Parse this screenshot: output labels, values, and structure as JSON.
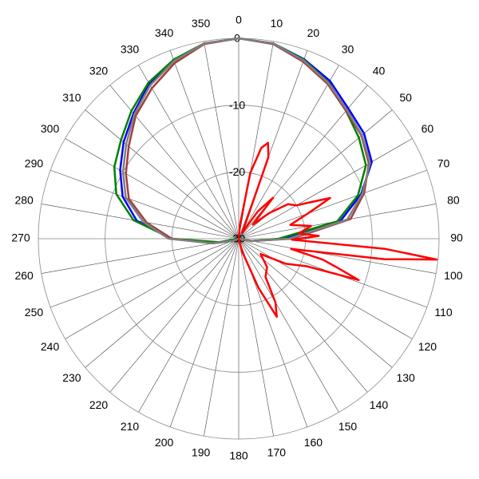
{
  "chart_data": {
    "type": "polar",
    "rlim": [
      -30,
      0
    ],
    "rticks": [
      -30,
      -20,
      -10,
      0
    ],
    "thetalim": [
      0,
      360
    ],
    "thetaticks": [
      0,
      10,
      20,
      30,
      40,
      50,
      60,
      70,
      80,
      90,
      100,
      110,
      120,
      130,
      140,
      150,
      160,
      170,
      180,
      190,
      200,
      210,
      220,
      230,
      240,
      250,
      260,
      270,
      280,
      290,
      300,
      310,
      320,
      330,
      340,
      350
    ],
    "grid": true,
    "series": [
      {
        "color": "#0000ff",
        "theta": [
          0,
          10,
          20,
          30,
          40,
          50,
          60,
          70,
          80,
          90,
          100,
          110,
          120,
          130,
          140,
          150,
          160,
          170,
          180,
          190,
          200,
          210,
          220,
          230,
          240,
          250,
          260,
          270,
          280,
          290,
          300,
          310,
          320,
          330,
          340,
          350,
          360
        ],
        "values": [
          0,
          -0.3,
          -1.4,
          -2.7,
          -4.5,
          -5.5,
          -7,
          -10.5,
          -14.5,
          -23,
          -28,
          -30,
          -30,
          -30,
          -30,
          -30,
          -30,
          -30,
          -30,
          -30,
          -30,
          -30,
          -30,
          -30,
          -30,
          -29,
          -26,
          -20,
          -14.5,
          -11.5,
          -9.5,
          -7.5,
          -5.5,
          -3.2,
          -1.5,
          -0.3,
          0
        ]
      },
      {
        "color": "#008000",
        "theta": [
          0,
          10,
          20,
          30,
          40,
          50,
          60,
          70,
          80,
          90,
          100,
          110,
          120,
          130,
          140,
          150,
          160,
          170,
          180,
          190,
          200,
          210,
          220,
          230,
          240,
          250,
          260,
          270,
          280,
          290,
          300,
          310,
          320,
          330,
          340,
          350,
          360
        ],
        "values": [
          0,
          -0.3,
          -1.5,
          -3,
          -5,
          -6.5,
          -8,
          -11,
          -15,
          -24,
          -28,
          -30,
          -30,
          -30,
          -30,
          -30,
          -30,
          -30,
          -30,
          -30,
          -30,
          -30,
          -30,
          -30,
          -30,
          -30,
          -27,
          -20,
          -14,
          -10.5,
          -8.5,
          -7,
          -5,
          -3,
          -1.5,
          -0.3,
          0
        ]
      },
      {
        "color": "#a04040",
        "theta": [
          0,
          10,
          20,
          30,
          40,
          50,
          60,
          70,
          80,
          90,
          100,
          110,
          120,
          130,
          140,
          150,
          160,
          170,
          180,
          190,
          200,
          210,
          220,
          230,
          240,
          250,
          260,
          270,
          280,
          290,
          300,
          310,
          320,
          330,
          340,
          350,
          360
        ],
        "values": [
          0,
          -0.4,
          -1.8,
          -3.3,
          -5,
          -6,
          -7.5,
          -10,
          -13,
          -22,
          -28,
          -30,
          -30,
          -30,
          -30,
          -30,
          -30,
          -30,
          -30,
          -30,
          -30,
          -30,
          -30,
          -30,
          -30,
          -29,
          -26,
          -20,
          -16,
          -12.5,
          -10.5,
          -8.5,
          -6,
          -4,
          -2,
          -0.4,
          0
        ]
      },
      {
        "color": "#808080",
        "theta": [
          0,
          10,
          20,
          30,
          40,
          50,
          60,
          70,
          80,
          90,
          100,
          110,
          120,
          130,
          140,
          150,
          160,
          170,
          180,
          190,
          200,
          210,
          220,
          230,
          240,
          250,
          260,
          270,
          280,
          290,
          300,
          310,
          320,
          330,
          340,
          350,
          360
        ],
        "values": [
          0,
          -0.3,
          -1.6,
          -3.1,
          -4.8,
          -5.9,
          -7.3,
          -10.3,
          -13.5,
          -22.5,
          -28,
          -30,
          -30,
          -30,
          -30,
          -30,
          -30,
          -30,
          -30,
          -30,
          -30,
          -30,
          -30,
          -30,
          -30,
          -29,
          -26,
          -19.5,
          -15.5,
          -12,
          -10,
          -8,
          -5.7,
          -3.5,
          -1.7,
          -0.3,
          0
        ]
      },
      {
        "color": "#ff0000",
        "theta": [
          0,
          5,
          10,
          14,
          17,
          20,
          25,
          30,
          35,
          40,
          45,
          50,
          55,
          60,
          63,
          66,
          70,
          75,
          80,
          85,
          88,
          91,
          94,
          96,
          98,
          101,
          104,
          106,
          109,
          112,
          118,
          125,
          135,
          145,
          150,
          154,
          158,
          165,
          175,
          180
        ],
        "values": [
          -30,
          -28,
          -20,
          -16,
          -15,
          -17,
          -28,
          -29,
          -25,
          -22,
          -27,
          -24,
          -21,
          -20,
          -18,
          -15,
          -19,
          -22,
          -19,
          -21,
          -18,
          -22,
          -8,
          -0.2,
          -8,
          -22,
          -17,
          -15,
          -11,
          -19,
          -22,
          -26,
          -24,
          -23,
          -19,
          -17,
          -22,
          -28,
          -30,
          -30
        ]
      }
    ]
  }
}
